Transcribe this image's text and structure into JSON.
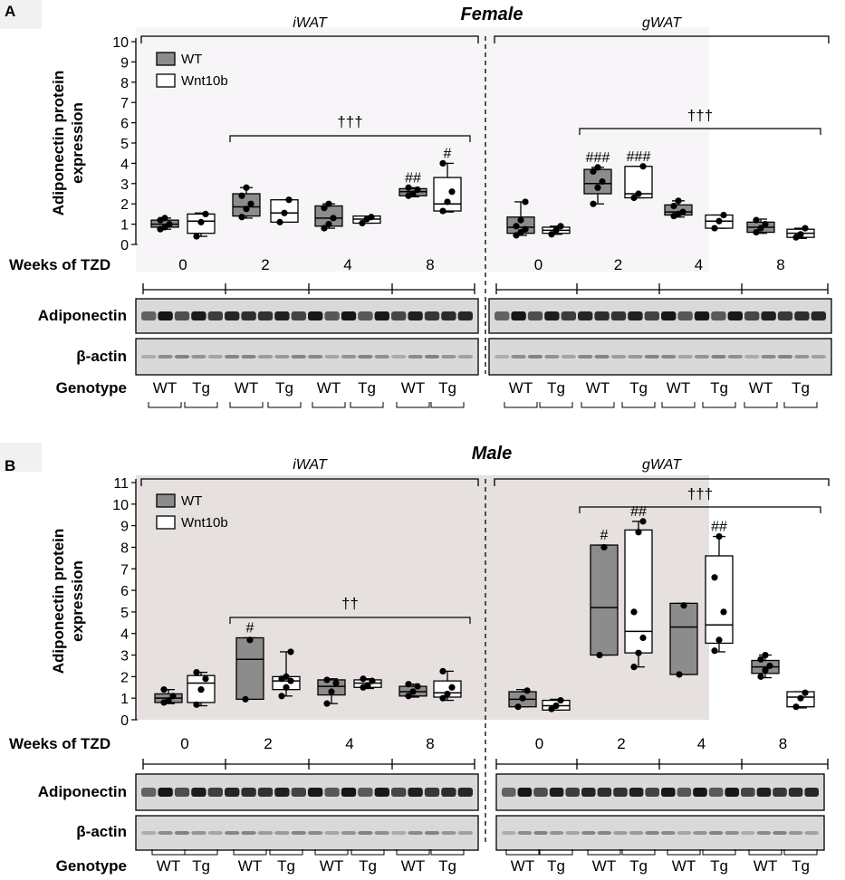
{
  "panels": [
    {
      "letter": "A",
      "sex": "Female",
      "depots": [
        "iWAT",
        "gWAT"
      ],
      "ylabel": [
        "Adiponectin protein",
        "expression"
      ],
      "yticks": [
        "0",
        "1",
        "2",
        "3",
        "4",
        "5",
        "6",
        "7",
        "8",
        "9",
        "10"
      ],
      "legend": [
        "WT",
        "Wnt10b"
      ],
      "weeks_label": "Weeks of TZD",
      "weeks": [
        "0",
        "2",
        "4",
        "8"
      ],
      "blot_labels": [
        "Adiponectin",
        "β-actin"
      ],
      "genotype_label": "Genotype",
      "genotypes": [
        "WT",
        "Tg",
        "WT",
        "Tg",
        "WT",
        "Tg",
        "WT",
        "Tg"
      ],
      "brackets": [
        {
          "label": "†††",
          "from_week": "2",
          "to_week": "8",
          "depot": "iWAT"
        },
        {
          "label": "†††",
          "from_week": "2",
          "to_week": "8",
          "depot": "gWAT"
        }
      ]
    },
    {
      "letter": "B",
      "sex": "Male",
      "depots": [
        "iWAT",
        "gWAT"
      ],
      "ylabel": [
        "Adiponectin protein",
        "expression"
      ],
      "yticks": [
        "0",
        "1",
        "2",
        "3",
        "4",
        "5",
        "6",
        "7",
        "8",
        "9",
        "10",
        "11"
      ],
      "legend": [
        "WT",
        "Wnt10b"
      ],
      "weeks_label": "Weeks of TZD",
      "weeks": [
        "0",
        "2",
        "4",
        "8"
      ],
      "blot_labels": [
        "Adiponectin",
        "β-actin"
      ],
      "genotype_label": "Genotype",
      "genotypes": [
        "WT",
        "Tg",
        "WT",
        "Tg",
        "WT",
        "Tg",
        "WT",
        "Tg"
      ],
      "brackets": [
        {
          "label": "††",
          "from_week": "2",
          "to_week": "8",
          "depot": "iWAT"
        },
        {
          "label": "†††",
          "from_week": "2",
          "to_week": "8",
          "depot": "gWAT"
        }
      ]
    }
  ],
  "colors": {
    "female_bg": "#f7f5f7",
    "male_bg": "#e6e1de",
    "wt_fill": "#8c8c8c",
    "tg_fill": "#ffffff"
  },
  "chart_data": [
    {
      "type": "box",
      "title": "Female",
      "ylabel": "Adiponectin protein expression",
      "xlabel": "Weeks of TZD",
      "ylim": [
        0,
        10
      ],
      "groups": [
        {
          "depot": "iWAT",
          "week": "0",
          "genotype": "WT",
          "min": 0.75,
          "q1": 0.85,
          "median": 1.0,
          "q3": 1.2,
          "max": 1.3,
          "points": [
            0.75,
            0.85,
            1.0,
            1.2,
            1.3
          ],
          "sig": ""
        },
        {
          "depot": "iWAT",
          "week": "0",
          "genotype": "Wnt10b",
          "min": 0.4,
          "q1": 0.55,
          "median": 1.15,
          "q3": 1.5,
          "max": 1.55,
          "points": [
            0.4,
            1.1,
            1.5
          ],
          "sig": ""
        },
        {
          "depot": "iWAT",
          "week": "2",
          "genotype": "WT",
          "min": 1.3,
          "q1": 1.4,
          "median": 1.85,
          "q3": 2.5,
          "max": 2.8,
          "points": [
            1.35,
            1.75,
            2.0,
            2.4,
            2.8
          ],
          "sig": ""
        },
        {
          "depot": "iWAT",
          "week": "2",
          "genotype": "Wnt10b",
          "min": 1.1,
          "q1": 1.1,
          "median": 1.55,
          "q3": 2.2,
          "max": 2.2,
          "points": [
            1.1,
            1.55,
            2.2
          ],
          "sig": ""
        },
        {
          "depot": "iWAT",
          "week": "4",
          "genotype": "WT",
          "min": 0.8,
          "q1": 0.9,
          "median": 1.3,
          "q3": 1.9,
          "max": 2.0,
          "points": [
            0.8,
            1.0,
            1.3,
            1.8,
            2.0
          ],
          "sig": ""
        },
        {
          "depot": "iWAT",
          "week": "4",
          "genotype": "Wnt10b",
          "min": 1.05,
          "q1": 1.05,
          "median": 1.25,
          "q3": 1.4,
          "max": 1.4,
          "points": [
            1.05,
            1.25,
            1.35
          ],
          "sig": ""
        },
        {
          "depot": "iWAT",
          "week": "8",
          "genotype": "WT",
          "min": 2.35,
          "q1": 2.4,
          "median": 2.6,
          "q3": 2.75,
          "max": 2.8,
          "points": [
            2.4,
            2.5,
            2.7,
            2.8
          ],
          "sig": "##"
        },
        {
          "depot": "iWAT",
          "week": "8",
          "genotype": "Wnt10b",
          "min": 1.6,
          "q1": 1.65,
          "median": 2.0,
          "q3": 3.3,
          "max": 4.0,
          "points": [
            1.65,
            2.1,
            2.6,
            4.0
          ],
          "sig": "#"
        },
        {
          "depot": "gWAT",
          "week": "0",
          "genotype": "WT",
          "min": 0.45,
          "q1": 0.55,
          "median": 0.85,
          "q3": 1.35,
          "max": 2.1,
          "points": [
            0.45,
            0.6,
            0.75,
            0.9,
            1.2,
            2.1
          ],
          "sig": ""
        },
        {
          "depot": "gWAT",
          "week": "0",
          "genotype": "Wnt10b",
          "min": 0.5,
          "q1": 0.55,
          "median": 0.7,
          "q3": 0.85,
          "max": 0.9,
          "points": [
            0.5,
            0.7,
            0.9
          ],
          "sig": ""
        },
        {
          "depot": "gWAT",
          "week": "2",
          "genotype": "WT",
          "min": 2.0,
          "q1": 2.5,
          "median": 3.0,
          "q3": 3.7,
          "max": 3.8,
          "points": [
            2.0,
            2.8,
            3.1,
            3.6,
            3.8
          ],
          "sig": "###"
        },
        {
          "depot": "gWAT",
          "week": "2",
          "genotype": "Wnt10b",
          "min": 2.3,
          "q1": 2.3,
          "median": 2.5,
          "q3": 3.85,
          "max": 3.85,
          "points": [
            2.3,
            2.5,
            3.85
          ],
          "sig": "###"
        },
        {
          "depot": "gWAT",
          "week": "4",
          "genotype": "WT",
          "min": 1.35,
          "q1": 1.45,
          "median": 1.6,
          "q3": 1.95,
          "max": 2.15,
          "points": [
            1.4,
            1.5,
            1.6,
            1.9,
            2.15
          ],
          "sig": ""
        },
        {
          "depot": "gWAT",
          "week": "4",
          "genotype": "Wnt10b",
          "min": 0.8,
          "q1": 0.8,
          "median": 1.15,
          "q3": 1.45,
          "max": 1.45,
          "points": [
            0.8,
            1.15,
            1.45
          ],
          "sig": ""
        },
        {
          "depot": "gWAT",
          "week": "8",
          "genotype": "WT",
          "min": 0.55,
          "q1": 0.6,
          "median": 0.85,
          "q3": 1.1,
          "max": 1.25,
          "points": [
            0.6,
            0.8,
            1.0,
            1.2
          ],
          "sig": ""
        },
        {
          "depot": "gWAT",
          "week": "8",
          "genotype": "Wnt10b",
          "min": 0.3,
          "q1": 0.35,
          "median": 0.55,
          "q3": 0.75,
          "max": 0.8,
          "points": [
            0.35,
            0.5,
            0.8
          ],
          "sig": ""
        }
      ]
    },
    {
      "type": "box",
      "title": "Male",
      "ylabel": "Adiponectin protein expression",
      "xlabel": "Weeks of TZD",
      "ylim": [
        0,
        11
      ],
      "groups": [
        {
          "depot": "iWAT",
          "week": "0",
          "genotype": "WT",
          "min": 0.75,
          "q1": 0.8,
          "median": 1.0,
          "q3": 1.2,
          "max": 1.4,
          "points": [
            0.8,
            0.9,
            1.1,
            1.4
          ],
          "sig": ""
        },
        {
          "depot": "iWAT",
          "week": "0",
          "genotype": "Wnt10b",
          "min": 0.65,
          "q1": 0.8,
          "median": 1.7,
          "q3": 2.05,
          "max": 2.2,
          "points": [
            0.7,
            1.4,
            1.9,
            2.2
          ],
          "sig": ""
        },
        {
          "depot": "iWAT",
          "week": "2",
          "genotype": "WT",
          "min": 0.95,
          "q1": 0.95,
          "median": 2.8,
          "q3": 3.8,
          "max": 3.8,
          "points": [
            0.95,
            3.7
          ],
          "sig": "#"
        },
        {
          "depot": "iWAT",
          "week": "2",
          "genotype": "Wnt10b",
          "min": 1.1,
          "q1": 1.4,
          "median": 1.8,
          "q3": 2.0,
          "max": 3.15,
          "points": [
            1.1,
            1.5,
            1.8,
            1.9,
            2.0,
            3.15
          ],
          "sig": ""
        },
        {
          "depot": "iWAT",
          "week": "4",
          "genotype": "WT",
          "min": 0.75,
          "q1": 1.15,
          "median": 1.55,
          "q3": 1.85,
          "max": 1.9,
          "points": [
            0.75,
            1.3,
            1.7,
            1.85
          ],
          "sig": ""
        },
        {
          "depot": "iWAT",
          "week": "4",
          "genotype": "Wnt10b",
          "min": 1.45,
          "q1": 1.5,
          "median": 1.7,
          "q3": 1.85,
          "max": 1.9,
          "points": [
            1.5,
            1.6,
            1.8,
            1.9
          ],
          "sig": ""
        },
        {
          "depot": "iWAT",
          "week": "8",
          "genotype": "WT",
          "min": 1.05,
          "q1": 1.1,
          "median": 1.3,
          "q3": 1.55,
          "max": 1.65,
          "points": [
            1.1,
            1.3,
            1.55,
            1.65
          ],
          "sig": ""
        },
        {
          "depot": "iWAT",
          "week": "8",
          "genotype": "Wnt10b",
          "min": 0.9,
          "q1": 1.05,
          "median": 1.25,
          "q3": 1.8,
          "max": 2.25,
          "points": [
            1.0,
            1.2,
            1.5,
            2.25
          ],
          "sig": ""
        },
        {
          "depot": "gWAT",
          "week": "0",
          "genotype": "WT",
          "min": 0.6,
          "q1": 0.6,
          "median": 0.95,
          "q3": 1.3,
          "max": 1.4,
          "points": [
            0.6,
            1.0,
            1.35
          ],
          "sig": ""
        },
        {
          "depot": "gWAT",
          "week": "0",
          "genotype": "Wnt10b",
          "min": 0.45,
          "q1": 0.45,
          "median": 0.65,
          "q3": 0.9,
          "max": 0.95,
          "points": [
            0.5,
            0.65,
            0.9
          ],
          "sig": ""
        },
        {
          "depot": "gWAT",
          "week": "2",
          "genotype": "WT",
          "min": 3.0,
          "q1": 3.0,
          "median": 5.2,
          "q3": 8.1,
          "max": 8.1,
          "points": [
            3.0,
            8.0
          ],
          "sig": "#"
        },
        {
          "depot": "gWAT",
          "week": "2",
          "genotype": "Wnt10b",
          "min": 2.45,
          "q1": 3.1,
          "median": 4.1,
          "q3": 8.8,
          "max": 9.2,
          "points": [
            2.45,
            3.1,
            3.8,
            5.0,
            8.7,
            9.2
          ],
          "sig": "##"
        },
        {
          "depot": "gWAT",
          "week": "4",
          "genotype": "WT",
          "min": 2.1,
          "q1": 2.1,
          "median": 4.3,
          "q3": 5.4,
          "max": 5.4,
          "points": [
            2.1,
            5.3
          ],
          "sig": ""
        },
        {
          "depot": "gWAT",
          "week": "4",
          "genotype": "Wnt10b",
          "min": 3.15,
          "q1": 3.55,
          "median": 4.4,
          "q3": 7.6,
          "max": 8.5,
          "points": [
            3.2,
            3.7,
            5.0,
            6.6,
            8.5
          ],
          "sig": "##"
        },
        {
          "depot": "gWAT",
          "week": "8",
          "genotype": "WT",
          "min": 1.95,
          "q1": 2.15,
          "median": 2.45,
          "q3": 2.75,
          "max": 3.0,
          "points": [
            2.0,
            2.3,
            2.5,
            2.8,
            3.0
          ],
          "sig": ""
        },
        {
          "depot": "gWAT",
          "week": "8",
          "genotype": "Wnt10b",
          "min": 0.55,
          "q1": 0.6,
          "median": 1.05,
          "q3": 1.3,
          "max": 1.3,
          "points": [
            0.6,
            1.0,
            1.25
          ],
          "sig": ""
        }
      ]
    }
  ]
}
